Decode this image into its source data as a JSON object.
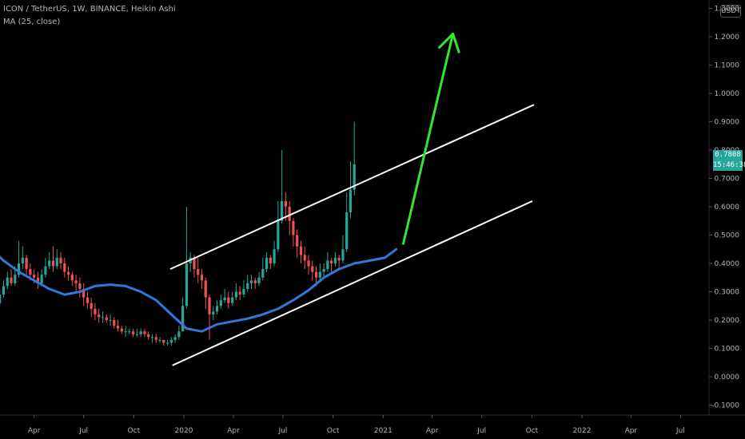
{
  "header": {
    "symbol_line": "ICON / TetherUS, 1W, BINANCE, Heikin Ashi",
    "ma_line": "MA (25, close)",
    "currency_label": "USDT"
  },
  "price_tag": {
    "last_price": "0.7808",
    "countdown": "15:46:38",
    "color": "#26a69a"
  },
  "colors": {
    "up": "#26a69a",
    "down": "#ef5350",
    "ma": "#2f7ad9",
    "channel": "#ffffff",
    "arrow": "#2fe82f",
    "axis_text": "#b2b5be",
    "background": "#000000"
  },
  "chart_data": {
    "type": "candlestick",
    "title": "ICON / TetherUS, 1W, BINANCE, Heikin Ashi",
    "y_ticks": [
      "1.3000",
      "1.2000",
      "1.1000",
      "1.0000",
      "0.9000",
      "0.8000",
      "0.7000",
      "0.6000",
      "0.5000",
      "0.4000",
      "0.3000",
      "0.2000",
      "0.1000",
      "0.0000",
      "-0.1000"
    ],
    "ylim": [
      -0.135,
      1.35
    ],
    "x_ticks": [
      {
        "label": "Apr",
        "date": "2019-04-01"
      },
      {
        "label": "Jul",
        "date": "2019-07-01"
      },
      {
        "label": "Oct",
        "date": "2019-10-01"
      },
      {
        "label": "2020",
        "date": "2020-01-01"
      },
      {
        "label": "Apr",
        "date": "2020-04-01"
      },
      {
        "label": "Jul",
        "date": "2020-07-01"
      },
      {
        "label": "Oct",
        "date": "2020-10-01"
      },
      {
        "label": "2021",
        "date": "2021-01-01"
      },
      {
        "label": "Apr",
        "date": "2021-04-01"
      },
      {
        "label": "Jul",
        "date": "2021-07-01"
      },
      {
        "label": "Oct",
        "date": "2021-10-01"
      },
      {
        "label": "2022",
        "date": "2022-01-01"
      },
      {
        "label": "Apr",
        "date": "2022-04-01"
      },
      {
        "label": "Jul",
        "date": "2022-07-01"
      }
    ],
    "series": [
      {
        "name": "ICON / TetherUS",
        "kind": "heikin-ashi-weekly",
        "start_date": "2019-01-07",
        "candles": [
          [
            0.22,
            0.23,
            0.24,
            0.21
          ],
          [
            0.23,
            0.25,
            0.26,
            0.22
          ],
          [
            0.25,
            0.26,
            0.27,
            0.24
          ],
          [
            0.26,
            0.29,
            0.31,
            0.25
          ],
          [
            0.29,
            0.32,
            0.34,
            0.28
          ],
          [
            0.32,
            0.35,
            0.37,
            0.31
          ],
          [
            0.35,
            0.33,
            0.38,
            0.32
          ],
          [
            0.33,
            0.36,
            0.39,
            0.32
          ],
          [
            0.36,
            0.4,
            0.48,
            0.35
          ],
          [
            0.4,
            0.42,
            0.46,
            0.38
          ],
          [
            0.42,
            0.38,
            0.43,
            0.36
          ],
          [
            0.38,
            0.36,
            0.4,
            0.34
          ],
          [
            0.36,
            0.35,
            0.38,
            0.33
          ],
          [
            0.35,
            0.33,
            0.37,
            0.31
          ],
          [
            0.33,
            0.36,
            0.38,
            0.32
          ],
          [
            0.36,
            0.39,
            0.42,
            0.35
          ],
          [
            0.39,
            0.41,
            0.44,
            0.38
          ],
          [
            0.41,
            0.39,
            0.46,
            0.37
          ],
          [
            0.39,
            0.42,
            0.45,
            0.38
          ],
          [
            0.42,
            0.4,
            0.44,
            0.38
          ],
          [
            0.4,
            0.37,
            0.42,
            0.35
          ],
          [
            0.37,
            0.36,
            0.39,
            0.34
          ],
          [
            0.36,
            0.34,
            0.37,
            0.32
          ],
          [
            0.34,
            0.33,
            0.36,
            0.3
          ],
          [
            0.33,
            0.31,
            0.35,
            0.28
          ],
          [
            0.31,
            0.28,
            0.33,
            0.25
          ],
          [
            0.28,
            0.26,
            0.3,
            0.24
          ],
          [
            0.26,
            0.24,
            0.28,
            0.21
          ],
          [
            0.24,
            0.22,
            0.26,
            0.2
          ],
          [
            0.22,
            0.21,
            0.24,
            0.19
          ],
          [
            0.21,
            0.21,
            0.23,
            0.19
          ],
          [
            0.21,
            0.2,
            0.22,
            0.19
          ],
          [
            0.2,
            0.2,
            0.22,
            0.18
          ],
          [
            0.2,
            0.18,
            0.21,
            0.17
          ],
          [
            0.18,
            0.17,
            0.2,
            0.16
          ],
          [
            0.17,
            0.16,
            0.18,
            0.15
          ],
          [
            0.16,
            0.16,
            0.18,
            0.14
          ],
          [
            0.16,
            0.16,
            0.17,
            0.15
          ],
          [
            0.16,
            0.15,
            0.17,
            0.14
          ],
          [
            0.15,
            0.15,
            0.17,
            0.14
          ],
          [
            0.15,
            0.16,
            0.17,
            0.14
          ],
          [
            0.16,
            0.15,
            0.17,
            0.14
          ],
          [
            0.15,
            0.14,
            0.16,
            0.13
          ],
          [
            0.14,
            0.14,
            0.15,
            0.12
          ],
          [
            0.14,
            0.13,
            0.15,
            0.12
          ],
          [
            0.13,
            0.13,
            0.14,
            0.12
          ],
          [
            0.13,
            0.12,
            0.13,
            0.11
          ],
          [
            0.12,
            0.12,
            0.13,
            0.11
          ],
          [
            0.12,
            0.13,
            0.14,
            0.11
          ],
          [
            0.13,
            0.14,
            0.15,
            0.12
          ],
          [
            0.14,
            0.16,
            0.18,
            0.13
          ],
          [
            0.16,
            0.25,
            0.28,
            0.16
          ],
          [
            0.25,
            0.4,
            0.6,
            0.24
          ],
          [
            0.4,
            0.42,
            0.44,
            0.37
          ],
          [
            0.42,
            0.38,
            0.43,
            0.35
          ],
          [
            0.38,
            0.36,
            0.42,
            0.33
          ],
          [
            0.36,
            0.34,
            0.38,
            0.31
          ],
          [
            0.34,
            0.28,
            0.35,
            0.24
          ],
          [
            0.28,
            0.22,
            0.29,
            0.13
          ],
          [
            0.22,
            0.23,
            0.25,
            0.2
          ],
          [
            0.23,
            0.25,
            0.27,
            0.22
          ],
          [
            0.25,
            0.27,
            0.29,
            0.24
          ],
          [
            0.27,
            0.28,
            0.31,
            0.26
          ],
          [
            0.28,
            0.26,
            0.3,
            0.24
          ],
          [
            0.26,
            0.28,
            0.3,
            0.25
          ],
          [
            0.28,
            0.3,
            0.33,
            0.27
          ],
          [
            0.3,
            0.29,
            0.32,
            0.27
          ],
          [
            0.29,
            0.31,
            0.34,
            0.28
          ],
          [
            0.31,
            0.33,
            0.36,
            0.3
          ],
          [
            0.33,
            0.34,
            0.36,
            0.31
          ],
          [
            0.34,
            0.33,
            0.35,
            0.31
          ],
          [
            0.33,
            0.35,
            0.37,
            0.32
          ],
          [
            0.35,
            0.38,
            0.42,
            0.34
          ],
          [
            0.38,
            0.42,
            0.44,
            0.37
          ],
          [
            0.42,
            0.4,
            0.43,
            0.38
          ],
          [
            0.4,
            0.45,
            0.48,
            0.39
          ],
          [
            0.45,
            0.55,
            0.62,
            0.44
          ],
          [
            0.55,
            0.62,
            0.8,
            0.54
          ],
          [
            0.62,
            0.6,
            0.65,
            0.55
          ],
          [
            0.6,
            0.55,
            0.62,
            0.5
          ],
          [
            0.55,
            0.5,
            0.56,
            0.46
          ],
          [
            0.5,
            0.46,
            0.52,
            0.42
          ],
          [
            0.46,
            0.43,
            0.48,
            0.4
          ],
          [
            0.43,
            0.41,
            0.46,
            0.38
          ],
          [
            0.41,
            0.39,
            0.43,
            0.36
          ],
          [
            0.39,
            0.37,
            0.41,
            0.34
          ],
          [
            0.37,
            0.35,
            0.39,
            0.32
          ],
          [
            0.35,
            0.37,
            0.4,
            0.34
          ],
          [
            0.37,
            0.38,
            0.4,
            0.35
          ],
          [
            0.38,
            0.41,
            0.44,
            0.37
          ],
          [
            0.41,
            0.4,
            0.42,
            0.37
          ],
          [
            0.4,
            0.42,
            0.44,
            0.39
          ],
          [
            0.42,
            0.41,
            0.43,
            0.38
          ],
          [
            0.41,
            0.45,
            0.5,
            0.4
          ],
          [
            0.45,
            0.58,
            0.65,
            0.44
          ],
          [
            0.58,
            0.66,
            0.76,
            0.56
          ],
          [
            0.66,
            0.75,
            0.9,
            0.64
          ]
        ]
      },
      {
        "name": "MA (25, close)",
        "kind": "line",
        "points": [
          {
            "date": "2019-01-07",
            "value": 0.46
          },
          {
            "date": "2019-02-04",
            "value": 0.41
          },
          {
            "date": "2019-03-04",
            "value": 0.37
          },
          {
            "date": "2019-04-01",
            "value": 0.34
          },
          {
            "date": "2019-04-29",
            "value": 0.31
          },
          {
            "date": "2019-05-27",
            "value": 0.29
          },
          {
            "date": "2019-06-24",
            "value": 0.3
          },
          {
            "date": "2019-07-22",
            "value": 0.32
          },
          {
            "date": "2019-08-19",
            "value": 0.325
          },
          {
            "date": "2019-09-16",
            "value": 0.32
          },
          {
            "date": "2019-10-14",
            "value": 0.3
          },
          {
            "date": "2019-11-11",
            "value": 0.27
          },
          {
            "date": "2019-12-09",
            "value": 0.22
          },
          {
            "date": "2020-01-06",
            "value": 0.17
          },
          {
            "date": "2020-02-03",
            "value": 0.16
          },
          {
            "date": "2020-03-02",
            "value": 0.185
          },
          {
            "date": "2020-03-30",
            "value": 0.195
          },
          {
            "date": "2020-04-27",
            "value": 0.205
          },
          {
            "date": "2020-05-25",
            "value": 0.22
          },
          {
            "date": "2020-06-22",
            "value": 0.24
          },
          {
            "date": "2020-07-20",
            "value": 0.27
          },
          {
            "date": "2020-08-17",
            "value": 0.305
          },
          {
            "date": "2020-09-14",
            "value": 0.35
          },
          {
            "date": "2020-10-12",
            "value": 0.38
          },
          {
            "date": "2020-11-09",
            "value": 0.4
          },
          {
            "date": "2020-12-07",
            "value": 0.41
          },
          {
            "date": "2021-01-04",
            "value": 0.42
          },
          {
            "date": "2021-01-25",
            "value": 0.45
          }
        ]
      }
    ],
    "annotations": [
      {
        "kind": "channel-upper",
        "from": {
          "date": "2019-12-07",
          "value": 0.38
        },
        "to": {
          "date": "2021-10-05",
          "value": 0.96
        }
      },
      {
        "kind": "channel-lower",
        "from": {
          "date": "2019-12-11",
          "value": 0.04
        },
        "to": {
          "date": "2021-10-02",
          "value": 0.62
        }
      },
      {
        "kind": "arrow-up",
        "from": {
          "date": "2021-02-07",
          "value": 0.47
        },
        "to": {
          "date": "2021-05-09",
          "value": 1.21
        }
      }
    ]
  }
}
